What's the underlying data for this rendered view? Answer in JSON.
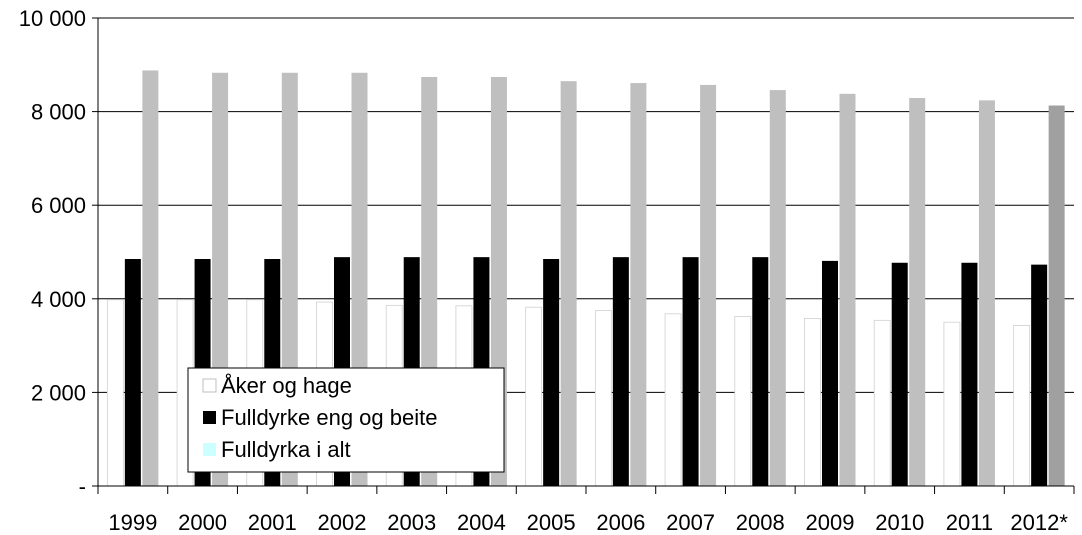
{
  "chart_data": {
    "type": "bar",
    "categories": [
      "1999",
      "2000",
      "2001",
      "2002",
      "2003",
      "2004",
      "2005",
      "2006",
      "2007",
      "2008",
      "2009",
      "2010",
      "2011",
      "2012*"
    ],
    "series": [
      {
        "name": "Åker og hage",
        "color": "#ffffff",
        "values": [
          3980,
          3980,
          3980,
          3930,
          3860,
          3850,
          3820,
          3750,
          3680,
          3620,
          3580,
          3540,
          3500,
          3430
        ]
      },
      {
        "name": "Fulldyrke eng og beite",
        "color": "#000000",
        "values": [
          4850,
          4850,
          4850,
          4890,
          4890,
          4890,
          4850,
          4890,
          4890,
          4890,
          4810,
          4770,
          4770,
          4730
        ]
      },
      {
        "name": "Fulldyrka i alt",
        "color": "#bfbfbf",
        "legend_swatch_color": "#ccffff",
        "last_bar_color": "#a0a0a0",
        "values": [
          8880,
          8830,
          8830,
          8830,
          8740,
          8740,
          8650,
          8610,
          8570,
          8460,
          8380,
          8290,
          8240,
          8130
        ]
      }
    ],
    "y_ticks": [
      {
        "value": 0,
        "label": "-"
      },
      {
        "value": 2000,
        "label": "2 000"
      },
      {
        "value": 4000,
        "label": "4 000"
      },
      {
        "value": 6000,
        "label": "6 000"
      },
      {
        "value": 8000,
        "label": "8 000"
      },
      {
        "value": 10000,
        "label": "10 000"
      }
    ],
    "ylim": [
      0,
      10000
    ],
    "grid": true,
    "legend_position": "bottom-left"
  }
}
